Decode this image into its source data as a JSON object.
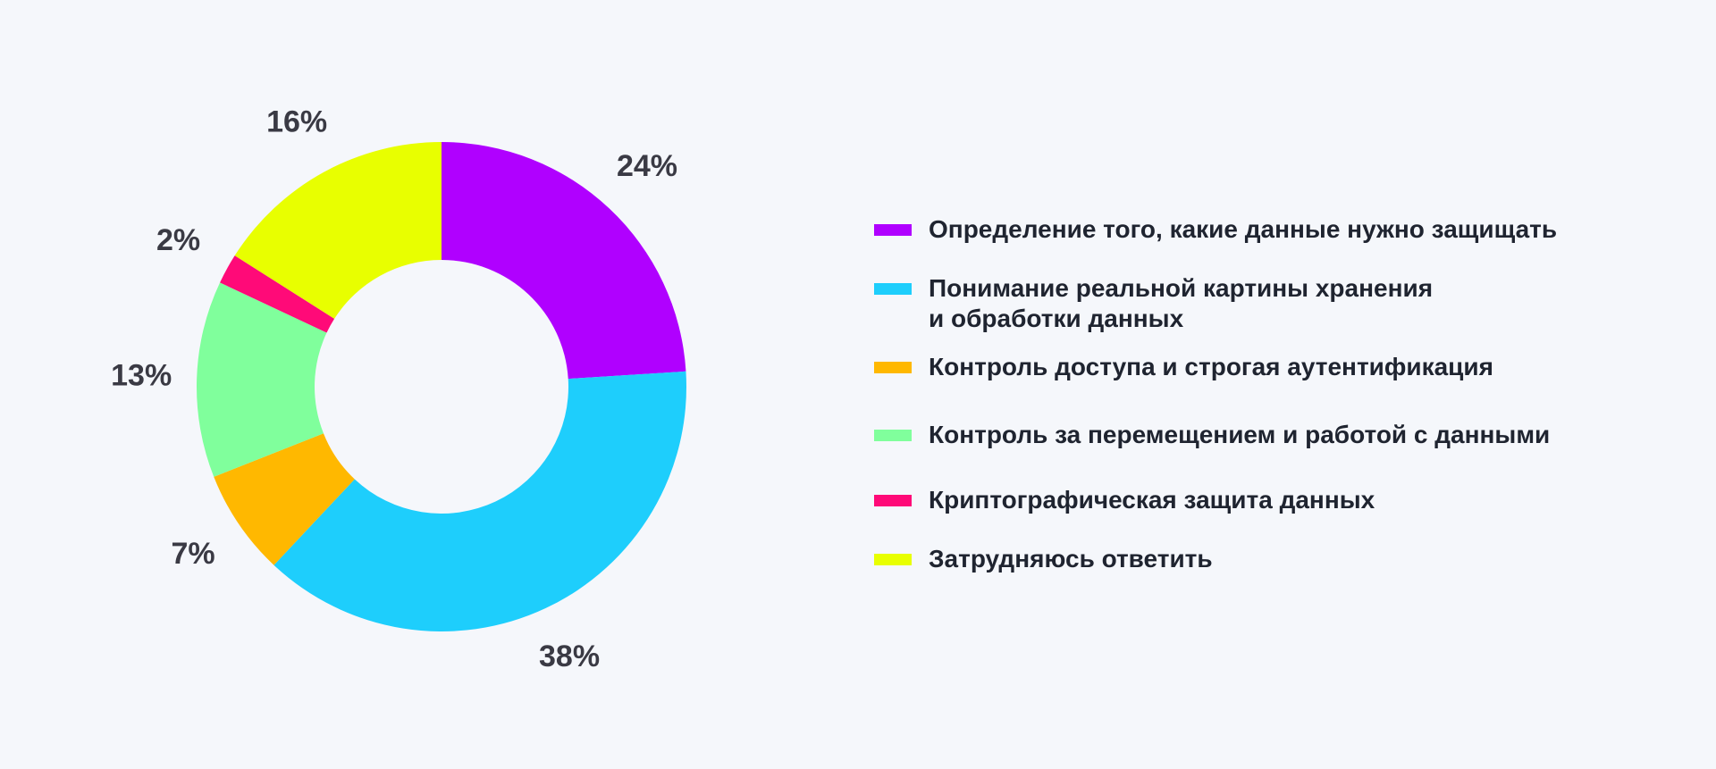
{
  "chart_data": {
    "type": "pie",
    "variant": "donut",
    "slices": [
      {
        "label": "Определение того, какие данные нужно защищать",
        "value": 24,
        "value_label": "24%",
        "color": "#b000ff"
      },
      {
        "label": "Понимание реальной картины хранения\nи обработки данных",
        "value": 38,
        "value_label": "38%",
        "color": "#1ecefc"
      },
      {
        "label": "Контроль доступа и строгая аутентификация",
        "value": 7,
        "value_label": "7%",
        "color": "#ffb800"
      },
      {
        "label": "Контроль за перемещением и работой с данными",
        "value": 13,
        "value_label": "13%",
        "color": "#80ff9c"
      },
      {
        "label": "Криптографическая защита данных",
        "value": 2,
        "value_label": "2%",
        "color": "#ff0a78"
      },
      {
        "label": "Затрудняюсь ответить",
        "value": 16,
        "value_label": "16%",
        "color": "#e8ff00"
      }
    ],
    "start_angle": "12 o'clock",
    "direction": "clockwise",
    "legend_position": "right"
  }
}
